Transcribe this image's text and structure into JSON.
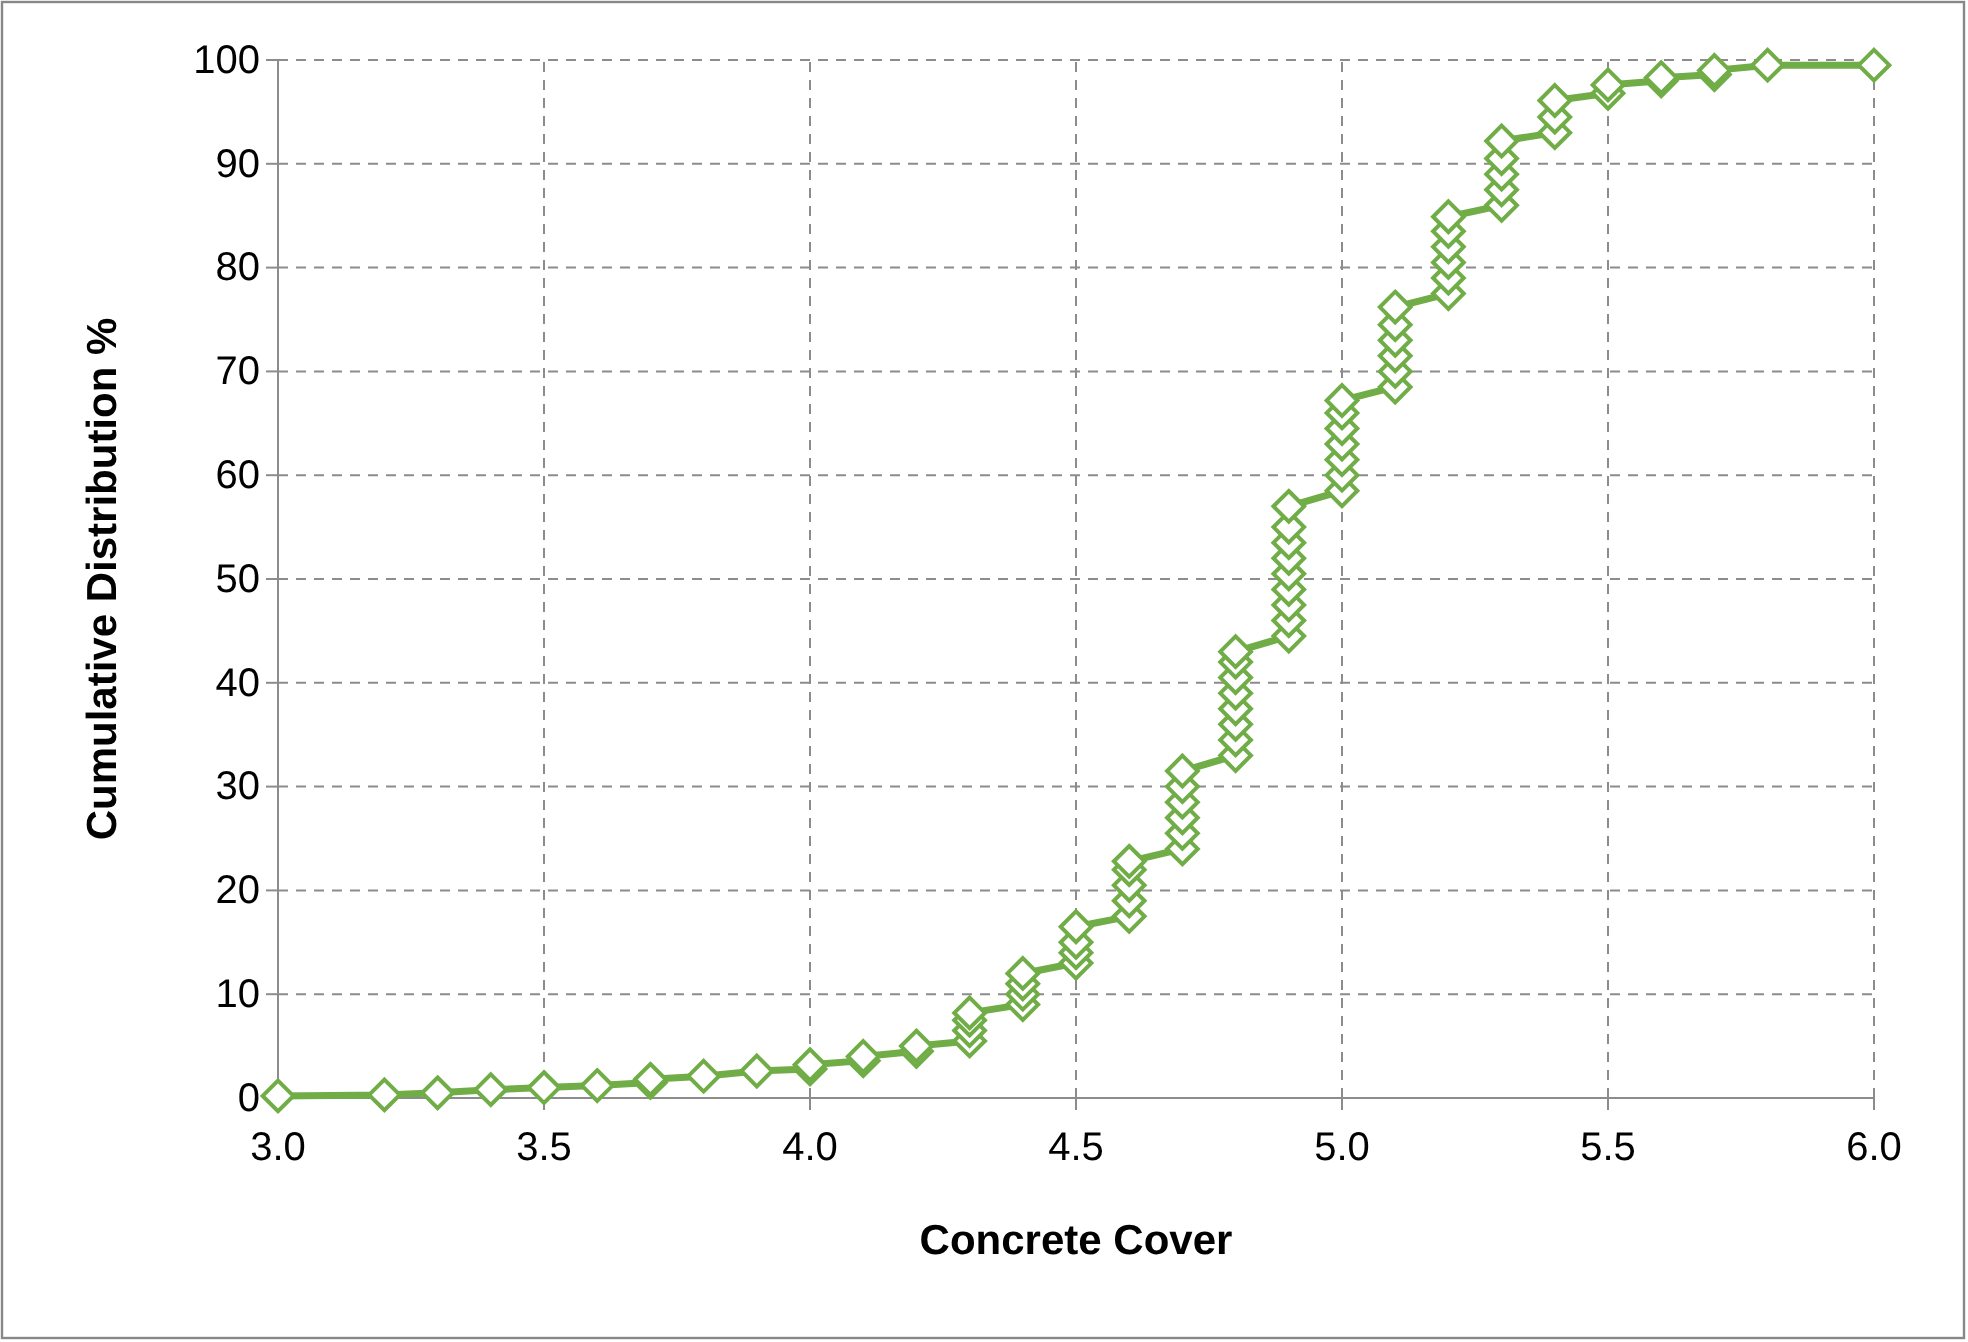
{
  "chart_data": {
    "type": "line",
    "xlabel": "Concrete Cover",
    "ylabel": "Cumulative Distribution %",
    "xlim": [
      3,
      6
    ],
    "ylim": [
      0,
      100
    ],
    "xticks": [
      {
        "value": 3,
        "label": "3.0"
      },
      {
        "value": 3.5,
        "label": "3.5"
      },
      {
        "value": 4,
        "label": "4.0"
      },
      {
        "value": 4.5,
        "label": "4.5"
      },
      {
        "value": 5,
        "label": "5.0"
      },
      {
        "value": 5.5,
        "label": "5.5"
      },
      {
        "value": 6,
        "label": "6.0"
      }
    ],
    "yticks": [
      0,
      10,
      20,
      30,
      40,
      50,
      60,
      70,
      80,
      90,
      100
    ],
    "grid": true,
    "marker": "diamond",
    "line_style": "solid",
    "series": [
      {
        "color": "#70ad47",
        "x": [
          3.0,
          3.2,
          3.3,
          3.4,
          3.5,
          3.6,
          3.7,
          3.7,
          3.8,
          3.9,
          4.0,
          4.0,
          4.1,
          4.1,
          4.2,
          4.2,
          4.3,
          4.3,
          4.3,
          4.3,
          4.4,
          4.4,
          4.4,
          4.4,
          4.5,
          4.5,
          4.5,
          4.5,
          4.6,
          4.6,
          4.6,
          4.6,
          4.6,
          4.7,
          4.7,
          4.7,
          4.7,
          4.7,
          4.7,
          4.8,
          4.8,
          4.8,
          4.8,
          4.8,
          4.8,
          4.8,
          4.8,
          4.9,
          4.9,
          4.9,
          4.9,
          4.9,
          4.9,
          4.9,
          4.9,
          4.9,
          5.0,
          5.0,
          5.0,
          5.0,
          5.0,
          5.0,
          5.0,
          5.1,
          5.1,
          5.1,
          5.1,
          5.1,
          5.1,
          5.2,
          5.2,
          5.2,
          5.2,
          5.2,
          5.2,
          5.3,
          5.3,
          5.3,
          5.3,
          5.3,
          5.4,
          5.4,
          5.4,
          5.5,
          5.5,
          5.6,
          5.6,
          5.7,
          5.7,
          5.8,
          6.0
        ],
        "values": [
          0.2,
          0.3,
          0.5,
          0.8,
          1.0,
          1.2,
          1.5,
          1.8,
          2.1,
          2.6,
          2.8,
          3.2,
          3.6,
          4.0,
          4.5,
          5.0,
          5.5,
          6.5,
          7.5,
          8.2,
          9,
          10,
          11,
          12,
          13,
          14,
          15,
          16.5,
          17.5,
          19,
          20.5,
          22,
          22.8,
          24,
          25.5,
          27,
          28.5,
          30,
          31.5,
          33,
          34.5,
          36,
          37.5,
          39,
          40.5,
          42,
          43,
          44.5,
          46,
          47.5,
          49,
          50.5,
          52,
          53.5,
          55,
          57,
          58.5,
          60,
          61.5,
          63,
          64.5,
          66,
          67.2,
          68.5,
          70,
          71.5,
          73,
          74.5,
          76.2,
          77.5,
          79,
          80.5,
          82,
          83.5,
          84.9,
          86,
          87.5,
          89,
          90.5,
          92.2,
          93,
          94.5,
          96.1,
          96.8,
          97.6,
          98.0,
          98.3,
          98.6,
          99.0,
          99.5,
          99.5
        ]
      }
    ]
  }
}
